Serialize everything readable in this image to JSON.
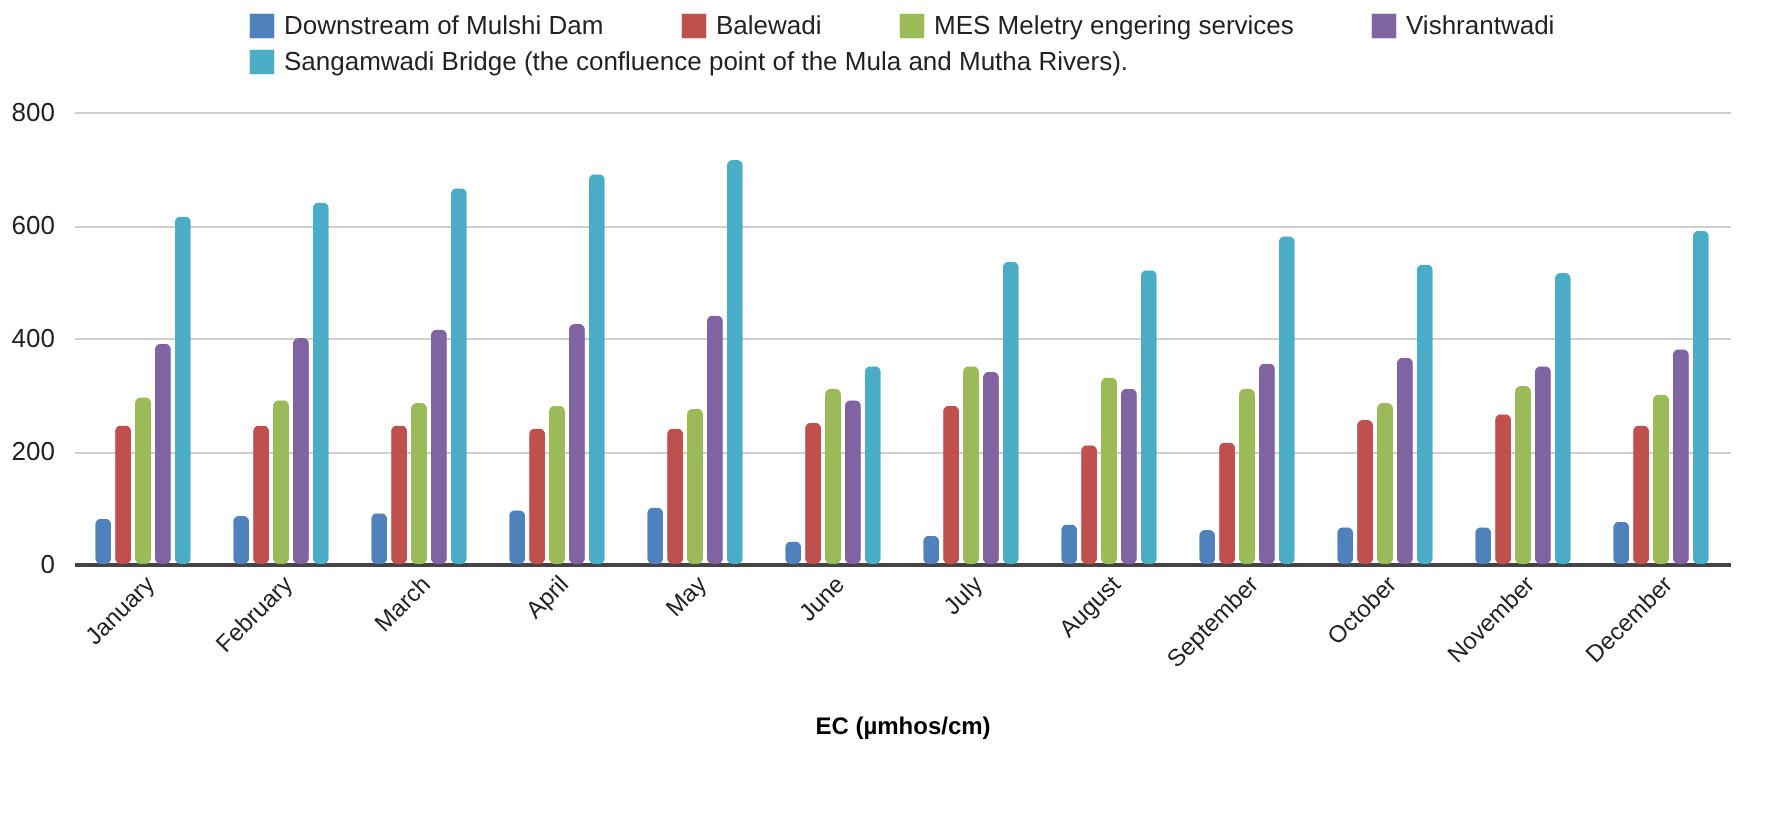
{
  "chart_data": {
    "type": "bar",
    "xlabel": "EC (µmhos/cm)",
    "categories": [
      "January",
      "February",
      "March",
      "April",
      "May",
      "June",
      "July",
      "August",
      "September",
      "October",
      "November",
      "December"
    ],
    "series": [
      {
        "name": "Downstream of Mulshi Dam",
        "color": "#4f81bd",
        "values": [
          80,
          85,
          90,
          95,
          100,
          40,
          50,
          70,
          60,
          65,
          65,
          75
        ]
      },
      {
        "name": "Balewadi",
        "color": "#c0504d",
        "values": [
          245,
          245,
          245,
          240,
          240,
          250,
          280,
          210,
          215,
          255,
          265,
          245
        ]
      },
      {
        "name": "MES Meletry engering services",
        "color": "#9bbb59",
        "values": [
          295,
          290,
          285,
          280,
          275,
          310,
          350,
          330,
          310,
          285,
          315,
          300
        ]
      },
      {
        "name": "Vishrantwadi",
        "color": "#8064a2",
        "values": [
          390,
          400,
          415,
          425,
          440,
          290,
          340,
          310,
          355,
          365,
          350,
          380
        ]
      },
      {
        "name": "Sangamwadi Bridge (the confluence point of the Mula and Mutha Rivers).",
        "color": "#4bacc6",
        "values": [
          615,
          640,
          665,
          690,
          715,
          350,
          535,
          520,
          580,
          530,
          515,
          590
        ]
      }
    ],
    "ylim": [
      0,
      800
    ],
    "yticks": [
      0,
      200,
      400,
      600,
      800
    ],
    "grid": "y",
    "legend": "top"
  }
}
